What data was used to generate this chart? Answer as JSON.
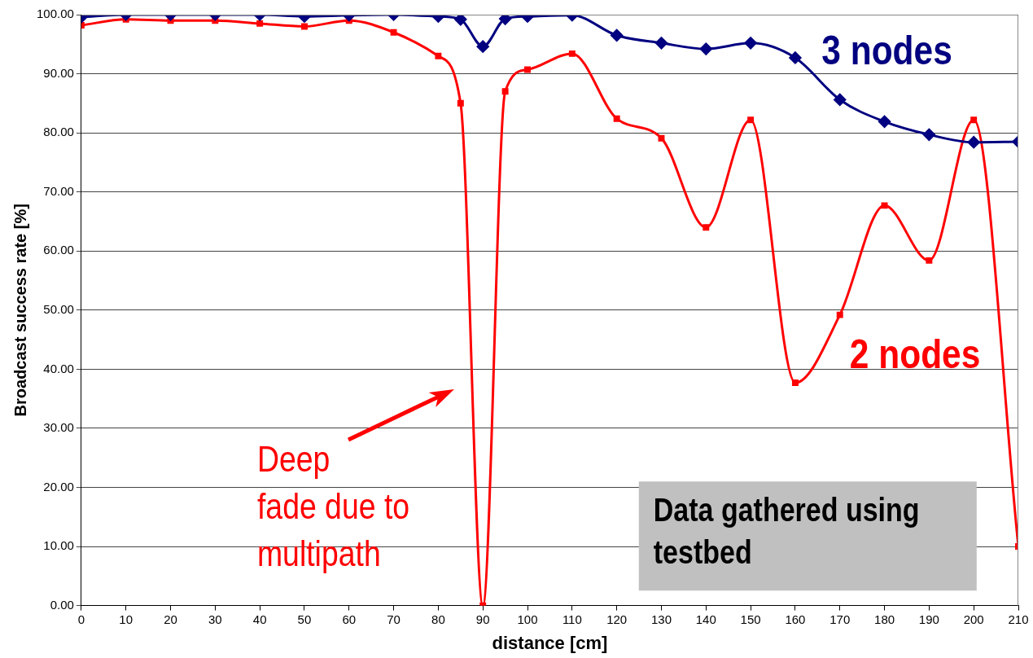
{
  "chart_data": {
    "type": "line",
    "xlabel": "distance [cm]",
    "ylabel": "Broadcast success rate [%]",
    "x": [
      0,
      10,
      20,
      30,
      40,
      50,
      60,
      70,
      80,
      85,
      90,
      95,
      100,
      110,
      120,
      130,
      140,
      150,
      160,
      170,
      180,
      190,
      200,
      210
    ],
    "series": [
      {
        "name": "3 nodes",
        "color": "#000080",
        "marker": "diamond",
        "values": [
          99.6,
          100,
          100,
          100,
          100,
          99.7,
          99.9,
          100,
          99.7,
          99.2,
          94.6,
          99.3,
          99.7,
          99.9,
          96.5,
          95.2,
          94.2,
          95.2,
          92.7,
          85.6,
          81.9,
          79.7,
          78.4,
          78.5
        ]
      },
      {
        "name": "2 nodes",
        "color": "#ff0000",
        "marker": "square",
        "values": [
          98.2,
          99.2,
          99.0,
          99.0,
          98.5,
          98.0,
          99.0,
          97.0,
          93.0,
          85.0,
          0,
          87.0,
          90.7,
          93.4,
          82.4,
          79.1,
          64.0,
          82.2,
          37.7,
          49.2,
          67.7,
          58.4,
          82.2,
          10.0
        ]
      }
    ],
    "xlim": [
      0,
      210
    ],
    "xticks": [
      0,
      10,
      20,
      30,
      40,
      50,
      60,
      70,
      80,
      90,
      100,
      110,
      120,
      130,
      140,
      150,
      160,
      170,
      180,
      190,
      200,
      210
    ],
    "ylim": [
      0,
      100
    ],
    "yticks": [
      {
        "value": 0,
        "label": "0.00"
      },
      {
        "value": 10,
        "label": "10.00"
      },
      {
        "value": 20,
        "label": "20.00"
      },
      {
        "value": 30,
        "label": "30.00"
      },
      {
        "value": 40,
        "label": "40.00"
      },
      {
        "value": 50,
        "label": "50.00"
      },
      {
        "value": 60,
        "label": "60.00"
      },
      {
        "value": 70,
        "label": "70.00"
      },
      {
        "value": 80,
        "label": "80.00"
      },
      {
        "value": 90,
        "label": "90.00"
      },
      {
        "value": 100,
        "label": "100.00"
      }
    ],
    "grid": "y",
    "legend": false,
    "annotations": [
      "Deep fade due to multipath",
      "Data gathered using testbed"
    ]
  }
}
